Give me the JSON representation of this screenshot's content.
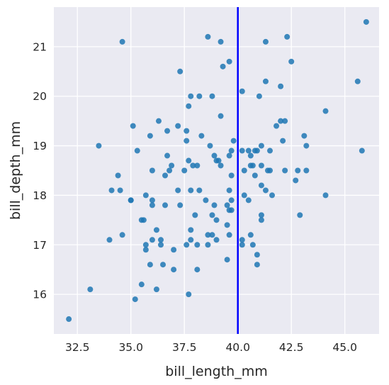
{
  "chart_data": {
    "type": "scatter",
    "xlabel": "bill_length_mm",
    "ylabel": "bill_depth_mm",
    "xlim": [
      31.4,
      46.6
    ],
    "ylim": [
      15.2,
      21.8
    ],
    "grid": true,
    "x_ticks": [
      32.5,
      35.0,
      37.5,
      40.0,
      42.5,
      45.0
    ],
    "x_tick_labels": [
      "32.5",
      "35.0",
      "37.5",
      "40.0",
      "42.5",
      "45.0"
    ],
    "y_ticks": [
      16,
      17,
      18,
      19,
      20,
      21
    ],
    "y_tick_labels": [
      "16",
      "17",
      "18",
      "19",
      "20",
      "21"
    ],
    "vline": {
      "x": 40.0,
      "color": "#0000ff"
    },
    "colors": {
      "background": "#eaeaf2",
      "grid": "#ffffff",
      "point": "#1f77b4"
    },
    "points": [
      [
        32.1,
        15.5
      ],
      [
        33.1,
        16.1
      ],
      [
        33.5,
        19.0
      ],
      [
        34.0,
        17.1
      ],
      [
        34.1,
        18.1
      ],
      [
        34.4,
        18.4
      ],
      [
        34.5,
        18.1
      ],
      [
        34.6,
        17.2
      ],
      [
        34.6,
        21.1
      ],
      [
        35.0,
        17.9
      ],
      [
        35.0,
        17.9
      ],
      [
        35.1,
        19.4
      ],
      [
        35.2,
        15.9
      ],
      [
        35.3,
        18.9
      ],
      [
        35.5,
        16.2
      ],
      [
        35.5,
        17.5
      ],
      [
        35.6,
        17.5
      ],
      [
        35.7,
        16.9
      ],
      [
        35.7,
        17.0
      ],
      [
        35.7,
        18.0
      ],
      [
        35.9,
        16.6
      ],
      [
        35.9,
        19.2
      ],
      [
        36.0,
        17.1
      ],
      [
        36.0,
        17.8
      ],
      [
        36.0,
        17.9
      ],
      [
        36.0,
        18.5
      ],
      [
        36.2,
        16.1
      ],
      [
        36.2,
        17.3
      ],
      [
        36.3,
        19.5
      ],
      [
        36.4,
        17.0
      ],
      [
        36.4,
        17.1
      ],
      [
        36.5,
        16.6
      ],
      [
        36.6,
        17.8
      ],
      [
        36.6,
        18.4
      ],
      [
        36.7,
        18.8
      ],
      [
        36.7,
        19.3
      ],
      [
        36.8,
        18.5
      ],
      [
        36.9,
        18.6
      ],
      [
        37.0,
        16.9
      ],
      [
        37.0,
        16.5
      ],
      [
        37.2,
        18.1
      ],
      [
        37.2,
        19.4
      ],
      [
        37.3,
        17.8
      ],
      [
        37.3,
        20.5
      ],
      [
        37.5,
        18.5
      ],
      [
        37.6,
        17.0
      ],
      [
        37.6,
        19.1
      ],
      [
        37.6,
        19.3
      ],
      [
        37.7,
        16.0
      ],
      [
        37.7,
        18.7
      ],
      [
        37.7,
        19.8
      ],
      [
        37.8,
        17.1
      ],
      [
        37.8,
        17.3
      ],
      [
        37.8,
        18.1
      ],
      [
        37.8,
        20.0
      ],
      [
        37.9,
        18.6
      ],
      [
        38.0,
        17.6
      ],
      [
        38.1,
        16.5
      ],
      [
        38.1,
        17.0
      ],
      [
        38.1,
        18.6
      ],
      [
        38.2,
        18.1
      ],
      [
        38.2,
        20.0
      ],
      [
        38.3,
        19.2
      ],
      [
        38.5,
        17.9
      ],
      [
        38.6,
        17.0
      ],
      [
        38.6,
        17.2
      ],
      [
        38.6,
        21.2
      ],
      [
        38.7,
        19.0
      ],
      [
        38.8,
        17.2
      ],
      [
        38.8,
        17.6
      ],
      [
        38.8,
        20.0
      ],
      [
        38.9,
        17.8
      ],
      [
        38.9,
        18.8
      ],
      [
        39.0,
        17.1
      ],
      [
        39.0,
        17.5
      ],
      [
        39.0,
        18.7
      ],
      [
        39.1,
        18.7
      ],
      [
        39.2,
        18.6
      ],
      [
        39.2,
        19.6
      ],
      [
        39.2,
        21.1
      ],
      [
        39.3,
        20.6
      ],
      [
        39.5,
        16.7
      ],
      [
        39.5,
        17.4
      ],
      [
        39.5,
        17.8
      ],
      [
        39.6,
        17.2
      ],
      [
        39.6,
        17.7
      ],
      [
        39.6,
        18.1
      ],
      [
        39.6,
        18.8
      ],
      [
        39.6,
        20.7
      ],
      [
        39.7,
        17.7
      ],
      [
        39.7,
        17.9
      ],
      [
        39.7,
        18.4
      ],
      [
        39.7,
        18.9
      ],
      [
        39.8,
        19.1
      ],
      [
        40.2,
        17.0
      ],
      [
        40.2,
        17.1
      ],
      [
        40.2,
        18.9
      ],
      [
        40.2,
        20.1
      ],
      [
        40.3,
        18.0
      ],
      [
        40.3,
        18.5
      ],
      [
        40.5,
        17.9
      ],
      [
        40.5,
        18.9
      ],
      [
        40.6,
        17.2
      ],
      [
        40.6,
        18.6
      ],
      [
        40.6,
        18.8
      ],
      [
        40.7,
        17.0
      ],
      [
        40.7,
        18.6
      ],
      [
        40.8,
        18.4
      ],
      [
        40.8,
        18.9
      ],
      [
        40.9,
        16.6
      ],
      [
        40.9,
        16.8
      ],
      [
        40.9,
        18.9
      ],
      [
        41.0,
        20.0
      ],
      [
        41.1,
        17.5
      ],
      [
        41.1,
        17.6
      ],
      [
        41.1,
        18.2
      ],
      [
        41.1,
        18.6
      ],
      [
        41.1,
        19.0
      ],
      [
        41.3,
        18.1
      ],
      [
        41.3,
        20.3
      ],
      [
        41.3,
        21.1
      ],
      [
        41.4,
        18.5
      ],
      [
        41.5,
        18.5
      ],
      [
        41.5,
        18.9
      ],
      [
        41.6,
        18.0
      ],
      [
        41.8,
        19.4
      ],
      [
        42.0,
        20.2
      ],
      [
        42.0,
        19.5
      ],
      [
        42.1,
        19.1
      ],
      [
        42.2,
        18.5
      ],
      [
        42.2,
        19.5
      ],
      [
        42.3,
        21.2
      ],
      [
        42.5,
        20.7
      ],
      [
        42.7,
        18.3
      ],
      [
        42.8,
        18.5
      ],
      [
        42.9,
        17.6
      ],
      [
        43.1,
        19.2
      ],
      [
        43.2,
        18.5
      ],
      [
        43.2,
        19.0
      ],
      [
        44.1,
        18.0
      ],
      [
        44.1,
        19.7
      ],
      [
        45.6,
        20.3
      ],
      [
        45.8,
        18.9
      ],
      [
        46.0,
        21.5
      ]
    ]
  }
}
